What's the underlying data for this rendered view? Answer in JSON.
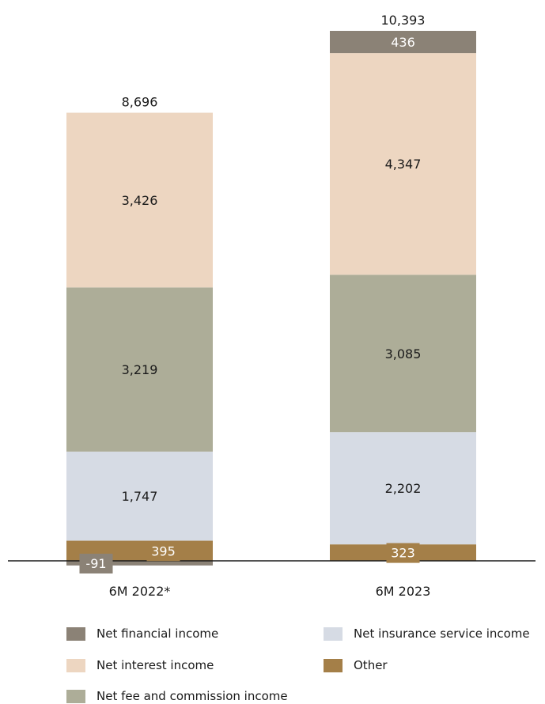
{
  "chart_data": {
    "type": "bar",
    "stacked": true,
    "categories": [
      "6M 2022*",
      "6M 2023"
    ],
    "totals": [
      "8,696",
      "10,393"
    ],
    "series": [
      {
        "name": "Other",
        "color": "#a47f48",
        "values": [
          395,
          323
        ],
        "labels": [
          "395",
          "323"
        ]
      },
      {
        "name": "Net insurance service income",
        "color": "#d6dbe4",
        "values": [
          1747,
          2202
        ],
        "labels": [
          "1,747",
          "2,202"
        ]
      },
      {
        "name": "Net fee and commission income",
        "color": "#adad98",
        "values": [
          3219,
          3085
        ],
        "labels": [
          "3,219",
          "3,085"
        ]
      },
      {
        "name": "Net interest income",
        "color": "#edd6c1",
        "values": [
          3426,
          4347
        ],
        "labels": [
          "3,426",
          "4,347"
        ]
      },
      {
        "name": "Net financial income",
        "color": "#8b8276",
        "values": [
          -91,
          436
        ],
        "labels": [
          "-91",
          "436"
        ]
      }
    ],
    "legend_order": [
      "Net financial income",
      "Net insurance service income",
      "Net interest income",
      "Other",
      "Net fee and commission income"
    ],
    "grid": false,
    "legend_position": "bottom"
  }
}
